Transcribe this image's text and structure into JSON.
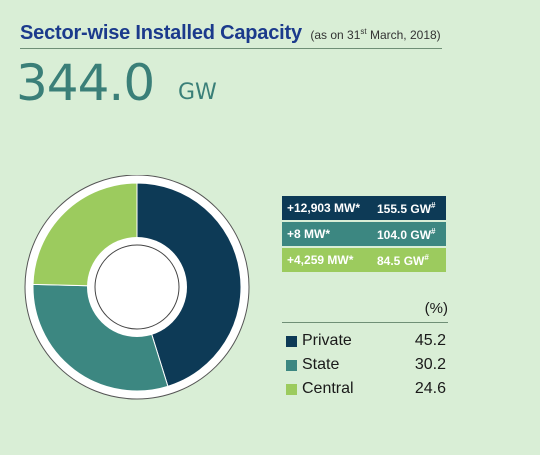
{
  "header": {
    "title": "Sector-wise Installed Capacity",
    "subtitle_pre": "(as on 31",
    "subtitle_sup": "st",
    "subtitle_post": " March, 2018)"
  },
  "total": {
    "value": "344.0",
    "unit": "GW"
  },
  "colors": {
    "private": "#0d3a56",
    "state": "#3c8781",
    "central": "#9ccb5e",
    "background": "#d9eed6",
    "title": "#1b3a8c",
    "total": "#3a7f78"
  },
  "changes": [
    {
      "mw": "+12,903 MW*",
      "gw": "155.5 GW",
      "gw_sup": "#"
    },
    {
      "mw": "+8 MW*",
      "gw": "104.0 GW",
      "gw_sup": "#"
    },
    {
      "mw": "+4,259 MW*",
      "gw": "84.5 GW",
      "gw_sup": "#"
    }
  ],
  "legend": {
    "unit_header": "(%)",
    "items": [
      {
        "label": "Private",
        "value": "45.2"
      },
      {
        "label": "State",
        "value": "30.2"
      },
      {
        "label": "Central",
        "value": "24.6"
      }
    ]
  },
  "chart_data": {
    "type": "pie",
    "style": "donut",
    "categories": [
      "Private",
      "State",
      "Central"
    ],
    "values": [
      45.2,
      30.2,
      24.6
    ],
    "unit": "%",
    "legend_placement": "right"
  }
}
